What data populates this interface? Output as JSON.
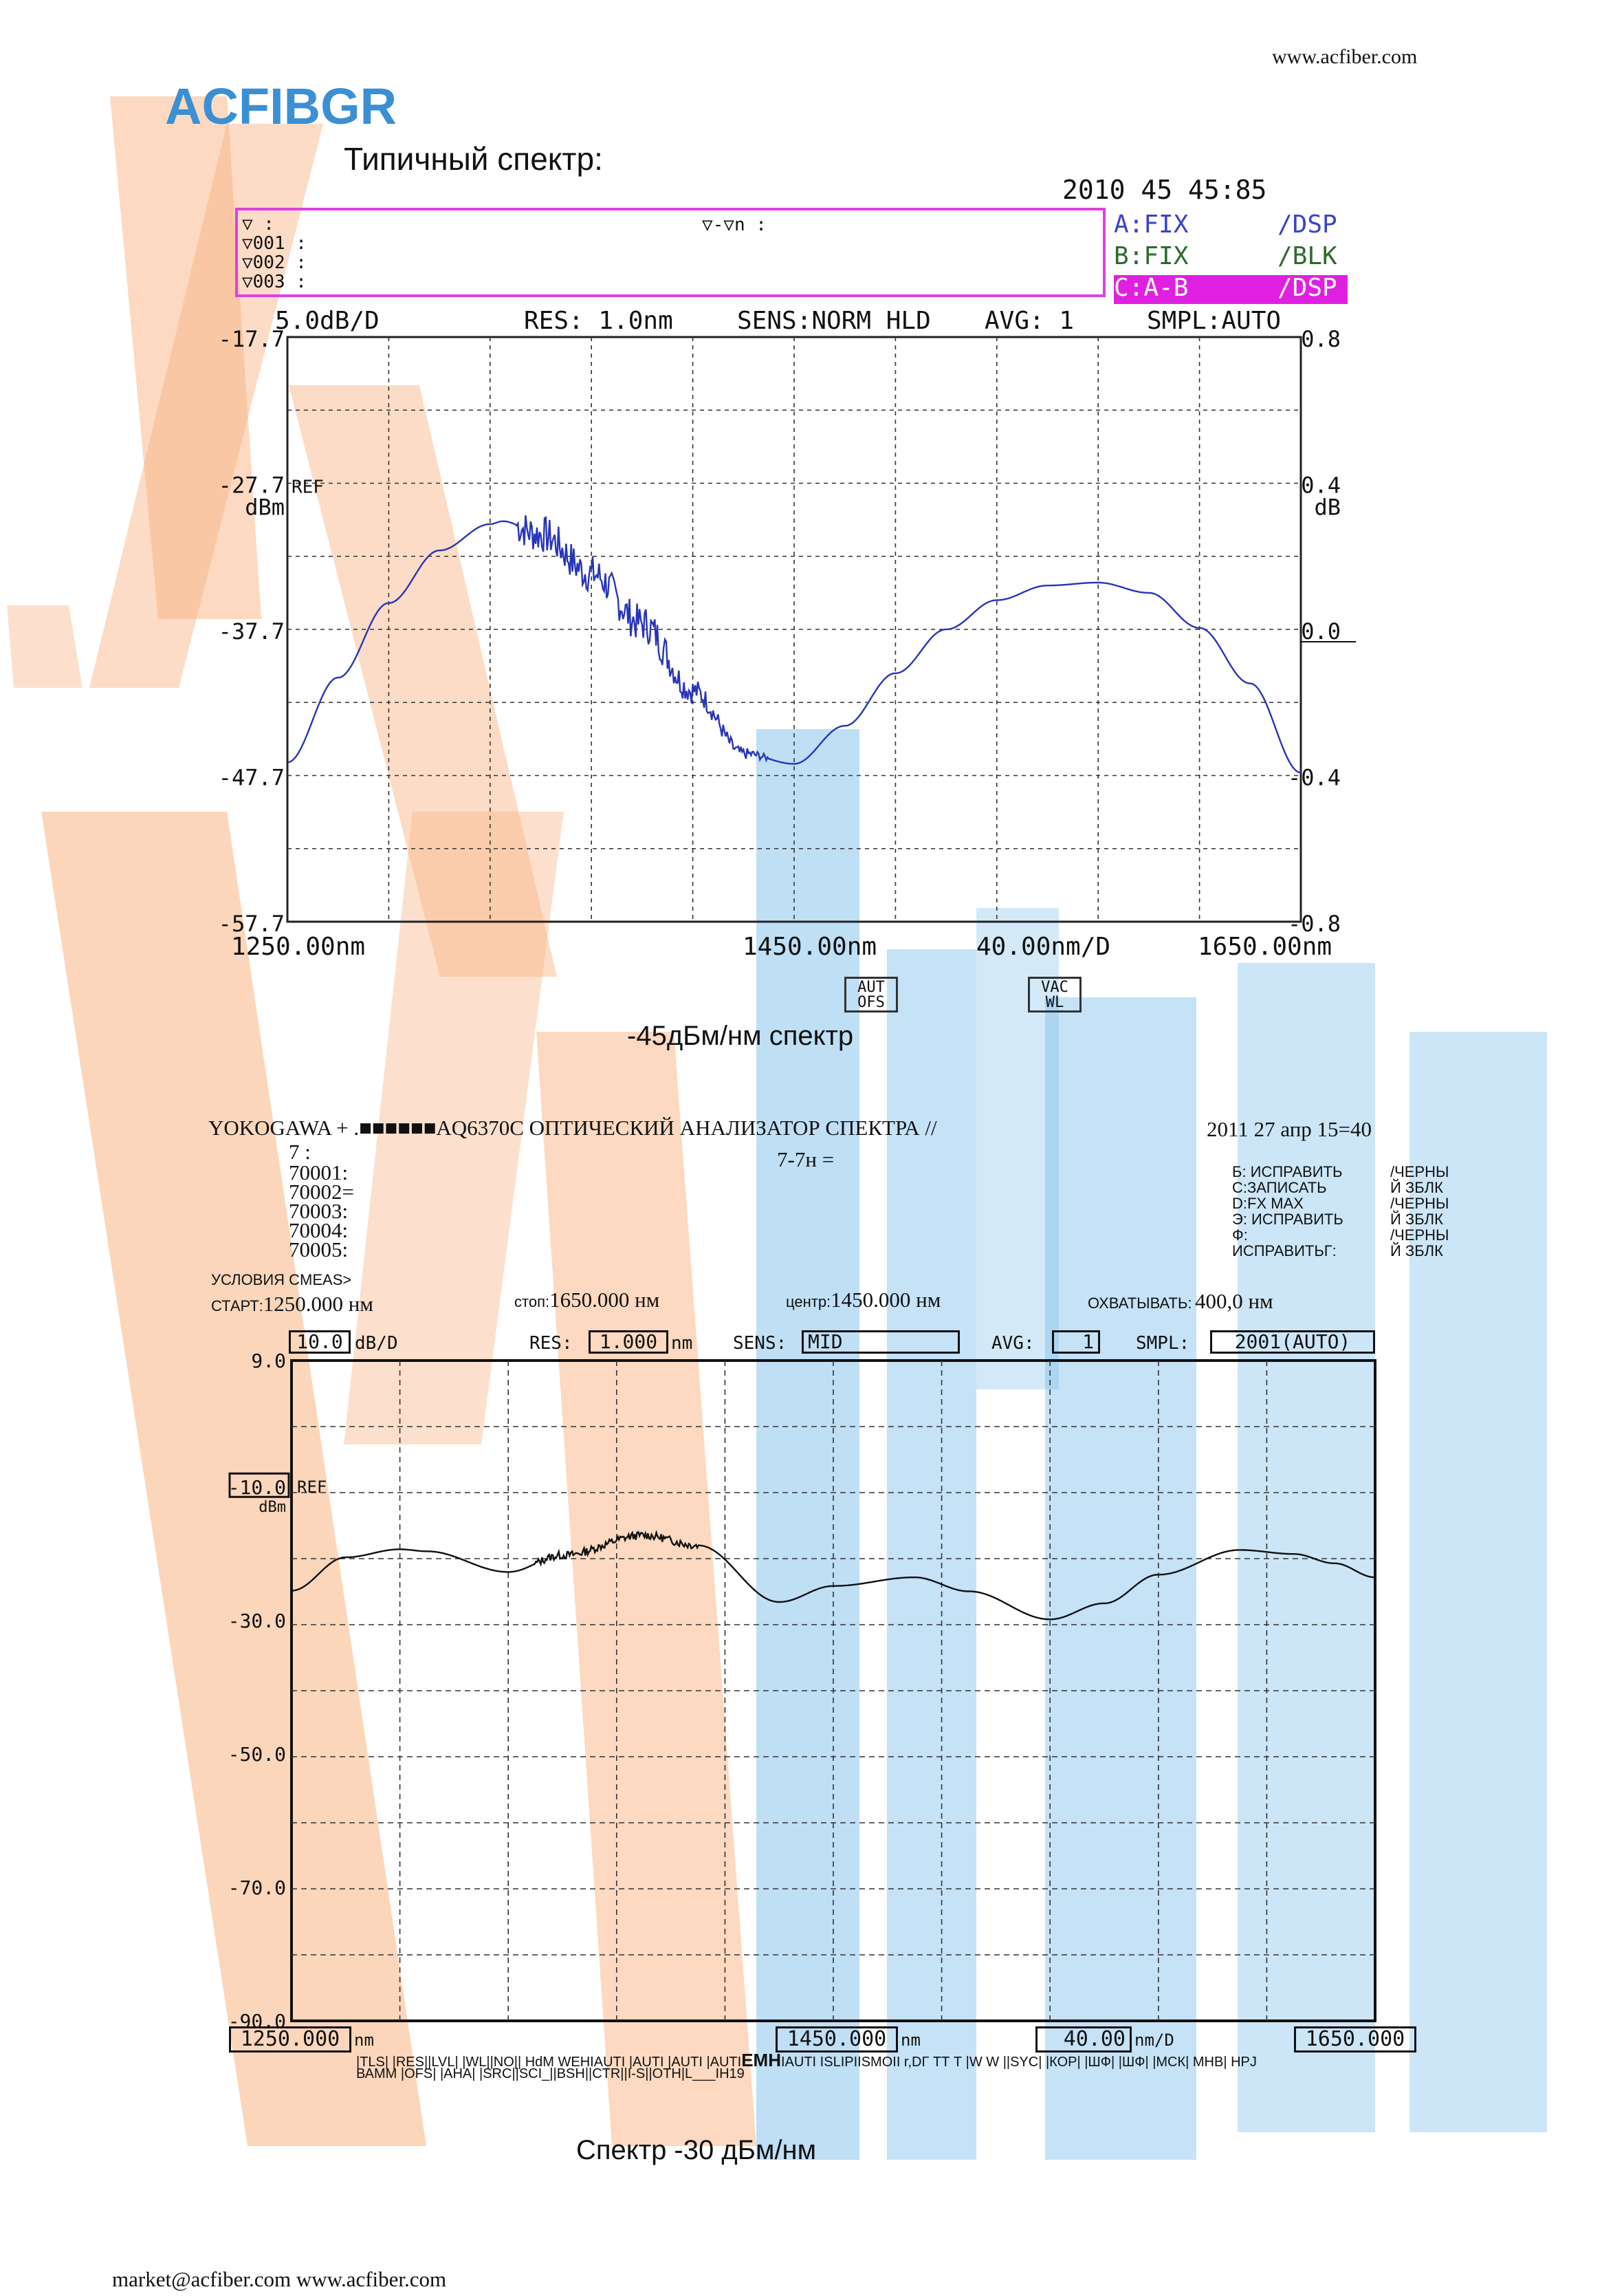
{
  "page": {
    "url_top": "www.acfiber.com",
    "brand": "ACFIBGR",
    "brand_color": "#3b8fd3",
    "section1_title": "Типичный спектр:",
    "caption1": "-45дБм/нм спектр",
    "caption2": "Спектр -30 дБм/нм",
    "footer": "market@acfiber.com www.acfiber.com",
    "watermark_orange": "#f7a56b",
    "watermark_blue": "#69b4e8"
  },
  "screen1": {
    "timestamp": "2010   45 45:85",
    "marker_rows": [
      "▽       :",
      "▽001 :",
      "▽002 :",
      "▽003 :"
    ],
    "delta_marker": "▽-▽n :",
    "traces": [
      {
        "label": "A:FIX",
        "mode": "/DSP",
        "color": "#3a44c8"
      },
      {
        "label": "B:FIX",
        "mode": "/BLK",
        "color": "#2e6a2e"
      },
      {
        "label": "C:A-B",
        "mode": "/DSP",
        "color": "#e020e0"
      }
    ],
    "settings": {
      "scale": "5.0dB/D",
      "res": "RES: 1.0nm",
      "sens": "SENS:NORM HLD",
      "avg": "AVG:    1",
      "smpl": "SMPL:AUTO"
    },
    "ref_label": "REF",
    "y_unit_left": "dBm",
    "y_unit_right": "dB",
    "y_ticks_left": [
      "-17.7",
      "-27.7",
      "-37.7",
      "-47.7",
      "-57.7"
    ],
    "y_ticks_right": [
      "0.8",
      "0.4",
      "0.0",
      "-0.4",
      "-0.8"
    ],
    "x_start": "1250.00nm",
    "x_center": "1450.00nm",
    "x_span": "40.00nm/D",
    "x_stop": "1650.00nm",
    "btn_aut": [
      "AUT",
      "OFS"
    ],
    "btn_vac": [
      "VAC",
      "WL"
    ],
    "trace_color": "#2835b8"
  },
  "screen2": {
    "header": "YOKOGAWA + .■■■■■■AQ6370C ОПТИЧЕСКИЙ АНАЛИЗАТОР СПЕКТРА //",
    "date": "2011 27 апр 15=40",
    "markers": [
      "7            :",
      "70001:",
      "70002=",
      "70003:",
      "70004:",
      "70005:"
    ],
    "delta_marker": "7-7н =",
    "trace_status_left": [
      "Б: ИСПРАВИТЬ",
      "С:ЗАПИСАТЬ",
      "D:FX MAX",
      "Э: ИСПРАВИТЬ",
      "Ф:",
      "ИСПРАВИТЬГ:"
    ],
    "trace_status_right": [
      "/ЧЕРНЫ",
      "Й  ЗБЛК",
      "/ЧЕРНЫ",
      "Й  ЗБЛК",
      "/ЧЕРНЫ",
      "Й ЗБЛК"
    ],
    "conditions_label": "УСЛОВИЯ CMEAS>",
    "start_label": "СТАРТ:",
    "start_value": "1250.000 нм",
    "stop_label": "стоп:",
    "stop_value": "1650.000 нм",
    "center_label": "центр:",
    "center_value": "1450.000 нм",
    "span_label": "ОХВАТЫВАТЬ:",
    "span_value": "400,0 нм",
    "scale_value": "10.0",
    "scale_unit": "dB/D",
    "res_label": "RES:",
    "res_value": "1.000",
    "res_unit": "nm",
    "sens_label": "SENS:",
    "sens_value": "MID",
    "avg_label": "AVG:",
    "avg_value": "1",
    "smpl_label": "SMPL:",
    "smpl_value": "2001(AUTO)",
    "y_ticks": [
      "9.0",
      "-10.0",
      "-30.0",
      "-50.0",
      "-70.0",
      "-90.0"
    ],
    "ref_label": "REF",
    "y_unit": "dBm",
    "x_start": "1250.000",
    "x_center": "1450.000",
    "x_span": "40.00",
    "x_span_unit": "nm/D",
    "x_stop": "1650.000",
    "x_unit": "nm",
    "softkeys_row1": "|TLS| |RES||LVL| |WL||NO|| HdM WEHIAUTI |AUTI |AUTI |AUTI",
    "softkeys_emh": "EMH",
    "softkeys_row1b": "IAUTI ISLIPIISMOII r,DГ ТТ Т |W W ||SYC| |КОР| |ШФ| |ШФ| |МСК| МНВ| НРЈ",
    "softkeys_row2": "ВАММ |OFS| |АНА| |SRC||SCI_||BSH||CTR||I-S||OTH|L___IH19",
    "trace_color": "#111111"
  },
  "chart_data": [
    {
      "type": "line",
      "x_range": [
        1250,
        1650
      ],
      "ylim": [
        -57.7,
        -17.7
      ],
      "ylim_right": [
        -0.8,
        0.8
      ],
      "ylabel": "dBm",
      "ylabel_right": "dB",
      "x": [
        1250,
        1270,
        1290,
        1310,
        1330,
        1335,
        1350,
        1370,
        1390,
        1410,
        1430,
        1450,
        1470,
        1490,
        1510,
        1530,
        1550,
        1570,
        1590,
        1610,
        1630,
        1650
      ],
      "series": [
        {
          "values": [
            -46.8,
            -41.0,
            -35.9,
            -32.3,
            -30.5,
            -30.3,
            -31.2,
            -33.9,
            -37.3,
            -41.9,
            -46.2,
            -46.9,
            -44.3,
            -40.7,
            -37.7,
            -35.7,
            -34.7,
            -34.5,
            -35.2,
            -37.6,
            -41.4,
            -47.5
          ]
        }
      ]
    },
    {
      "type": "line",
      "x_range": [
        1250,
        1650
      ],
      "ylim": [
        -90,
        9
      ],
      "ylabel": "dBm",
      "x": [
        1250,
        1270,
        1290,
        1300,
        1330,
        1350,
        1380,
        1400,
        1430,
        1450,
        1480,
        1500,
        1530,
        1550,
        1570,
        1600,
        1620,
        1635,
        1650
      ],
      "series": [
        {
          "values": [
            -25.5,
            -20.5,
            -19.3,
            -19.6,
            -22.7,
            -20.2,
            -17.2,
            -18.7,
            -27.2,
            -24.8,
            -23.5,
            -25.6,
            -29.8,
            -27.4,
            -23.1,
            -19.4,
            -20.0,
            -21.4,
            -23.5
          ]
        }
      ]
    }
  ]
}
